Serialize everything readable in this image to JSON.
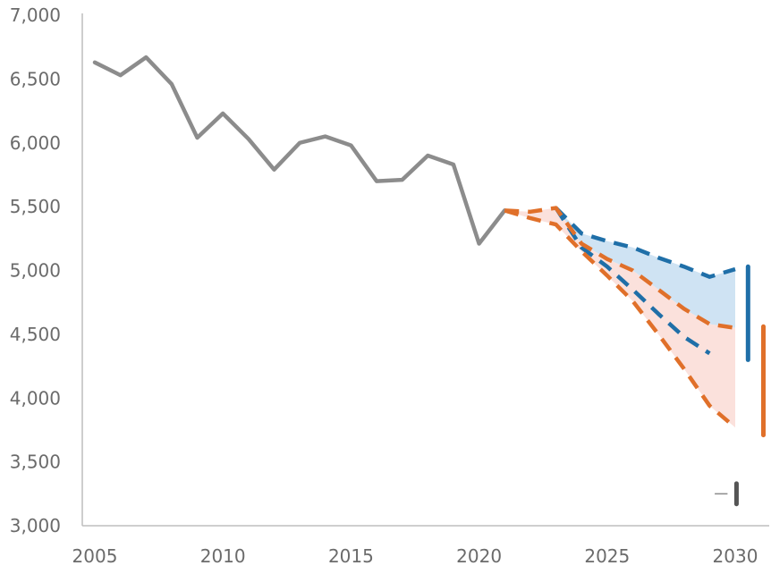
{
  "chart_data": {
    "type": "line",
    "title": "",
    "xlabel": "",
    "ylabel": "",
    "xlim": [
      2005,
      2030
    ],
    "ylim": [
      3000,
      7000
    ],
    "grid": false,
    "x_ticks": [
      2005,
      2010,
      2015,
      2020,
      2025,
      2030
    ],
    "x_tick_labels": [
      "2005",
      "2010",
      "2015",
      "2020",
      "2025",
      "2030"
    ],
    "y_ticks": [
      3000,
      3500,
      4000,
      4500,
      5000,
      5500,
      6000,
      6500,
      7000
    ],
    "y_tick_labels": [
      "3,000",
      "3,500",
      "4,000",
      "4,500",
      "5,000",
      "5,500",
      "6,000",
      "6,500",
      "7,000"
    ],
    "series": [
      {
        "role": "historical",
        "color": "#8c8c8c",
        "style": "solid",
        "x": [
          2005,
          2006,
          2007,
          2008,
          2009,
          2010,
          2011,
          2012,
          2013,
          2014,
          2015,
          2016,
          2017,
          2018,
          2019,
          2020,
          2021
        ],
        "y": [
          6630,
          6530,
          6670,
          6460,
          6040,
          6230,
          6030,
          5790,
          6000,
          6050,
          5980,
          5700,
          5710,
          5900,
          5830,
          5210,
          5470
        ]
      },
      {
        "role": "projection-a-upper",
        "color": "#1f6fa8",
        "style": "dashed",
        "x": [
          2023,
          2024,
          2025,
          2026,
          2027,
          2028,
          2029,
          2030
        ],
        "y": [
          5490,
          5290,
          5230,
          5180,
          5100,
          5030,
          4950,
          5010
        ]
      },
      {
        "role": "projection-a-lower",
        "color": "#1f6fa8",
        "style": "dashed",
        "x": [
          2023,
          2024,
          2025,
          2026,
          2027,
          2028,
          2029
        ],
        "y": [
          5490,
          5180,
          5030,
          4850,
          4660,
          4480,
          4350
        ]
      },
      {
        "role": "projection-b-upper",
        "color": "#e0702a",
        "style": "dashed",
        "x": [
          2021,
          2022,
          2023,
          2024,
          2025,
          2026,
          2027,
          2028,
          2029,
          2030
        ],
        "y": [
          5470,
          5460,
          5490,
          5210,
          5090,
          5000,
          4850,
          4700,
          4580,
          4550
        ]
      },
      {
        "role": "projection-b-lower",
        "color": "#e0702a",
        "style": "dashed",
        "x": [
          2021,
          2022,
          2023,
          2024,
          2025,
          2026,
          2027,
          2028,
          2029,
          2030
        ],
        "y": [
          5470,
          5410,
          5360,
          5150,
          4960,
          4760,
          4500,
          4230,
          3940,
          3770
        ]
      }
    ],
    "bands": [
      {
        "color": "#cfe3f3",
        "x": [
          2023,
          2024,
          2025,
          2026,
          2027,
          2028,
          2029,
          2030
        ],
        "upper": [
          5490,
          5290,
          5230,
          5180,
          5100,
          5030,
          4950,
          5010
        ],
        "lower": [
          5490,
          5210,
          5090,
          5000,
          4850,
          4700,
          4580,
          4550
        ]
      },
      {
        "color": "#fbe1dc",
        "x": [
          2021,
          2022,
          2023,
          2024,
          2025,
          2026,
          2027,
          2028,
          2029,
          2030
        ],
        "upper": [
          5470,
          5460,
          5490,
          5210,
          5090,
          5000,
          4850,
          4700,
          4580,
          4550
        ],
        "lower": [
          5470,
          5410,
          5360,
          5150,
          4960,
          4760,
          4500,
          4230,
          3940,
          3770
        ]
      }
    ],
    "range_bars": [
      {
        "color": "#1f6fa8",
        "x": 2030.5,
        "low": 4300,
        "high": 5030
      },
      {
        "color": "#e0702a",
        "x": 2031.1,
        "low": 3710,
        "high": 4560
      },
      {
        "color": "#555555",
        "x": 2030.05,
        "low": 3170,
        "high": 3330
      }
    ],
    "legend_stub": {
      "color": "#8c8c8c",
      "x_from": 2029.2,
      "x_to": 2029.7,
      "y": 3250
    }
  }
}
